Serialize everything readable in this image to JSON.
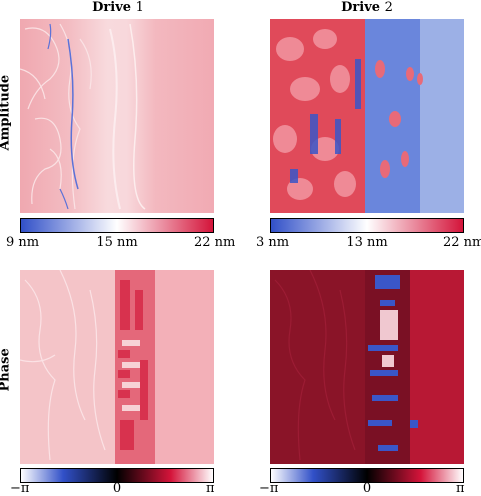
{
  "columns": [
    {
      "label": "Drive",
      "num": "1"
    },
    {
      "label": "Drive",
      "num": "2"
    }
  ],
  "rows": [
    "Amplitude",
    "Phase"
  ],
  "colorbars": {
    "amp1": {
      "min": "9 nm",
      "mid": "15 nm",
      "max": "22 nm"
    },
    "amp2": {
      "min": "3 nm",
      "mid": "13 nm",
      "max": "22 nm"
    },
    "phase1": {
      "min": "−π",
      "mid": "0",
      "max": "π"
    },
    "phase2": {
      "min": "−π",
      "mid": "0",
      "max": "π"
    }
  },
  "colors": {
    "blue": "#3150c8",
    "white": "#ffffff",
    "red": "#d4143a",
    "black": "#000000",
    "pink": "#f4c4c8",
    "darkred": "#6e0e1e"
  }
}
